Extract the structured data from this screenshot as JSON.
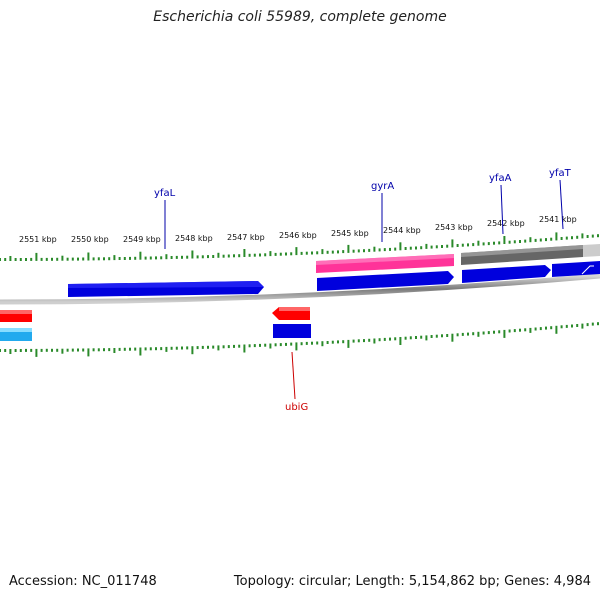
{
  "title": "Escherichia coli 55989, complete genome",
  "footer": {
    "accession": "Accession: NC_011748",
    "summary": "Topology: circular; Length: 5,154,862 bp; Genes: 4,984"
  },
  "colors": {
    "backbone": "#8c8c8c",
    "tick": "#2a8a2a",
    "forward_cds": "#0000dd",
    "reverse_cds": "#0000dd",
    "rna": "#ff3399",
    "other_gene": "#ff0000",
    "gray_feature": "#666666",
    "cyan_feature": "#33bbee",
    "label_blue": "#0000aa",
    "label_red": "#cc0000"
  },
  "ticks": [
    "2551 kbp",
    "2550 kbp",
    "2549 kbp",
    "2548 kbp",
    "2547 kbp",
    "2546 kbp",
    "2545 kbp",
    "2544 kbp",
    "2543 kbp",
    "2542 kbp",
    "2541 kbp"
  ],
  "genes": {
    "yfaL": "yfaL",
    "gyrA": "gyrA",
    "yfaA": "yfaA",
    "yfaT": "yfaT",
    "ubiG": "ubiG"
  }
}
